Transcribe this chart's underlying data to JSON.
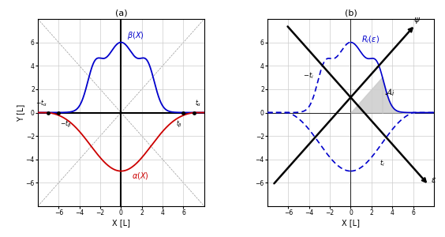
{
  "fig_width": 5.64,
  "fig_height": 3.0,
  "dpi": 100,
  "panel_a": {
    "title": "(a)",
    "xlabel": "X [L]",
    "ylabel": "Y [L]",
    "xlim": [
      -8,
      8
    ],
    "ylim": [
      -8,
      8
    ],
    "xticks": [
      -6,
      -4,
      -2,
      0,
      2,
      4,
      6
    ],
    "yticks": [
      -6,
      -4,
      -2,
      0,
      2,
      4,
      6
    ],
    "t_alpha": 7.0,
    "t_beta": 6.0,
    "beta_color": "#0000cc",
    "alpha_color": "#cc0000",
    "grid_color": "#cccccc",
    "diag_color": "#999999"
  },
  "panel_b": {
    "title": "(b)",
    "xlabel": "X [L]",
    "xlim": [
      -8,
      8
    ],
    "ylim": [
      -8,
      8
    ],
    "xticks": [
      -6,
      -4,
      -2,
      0,
      2,
      4,
      6
    ],
    "yticks": [
      -6,
      -4,
      -2,
      0,
      2,
      4,
      6
    ],
    "curve_color": "#0000cc",
    "shade_color": "#cccccc",
    "t_i": 6.0,
    "grid_color": "#cccccc"
  }
}
